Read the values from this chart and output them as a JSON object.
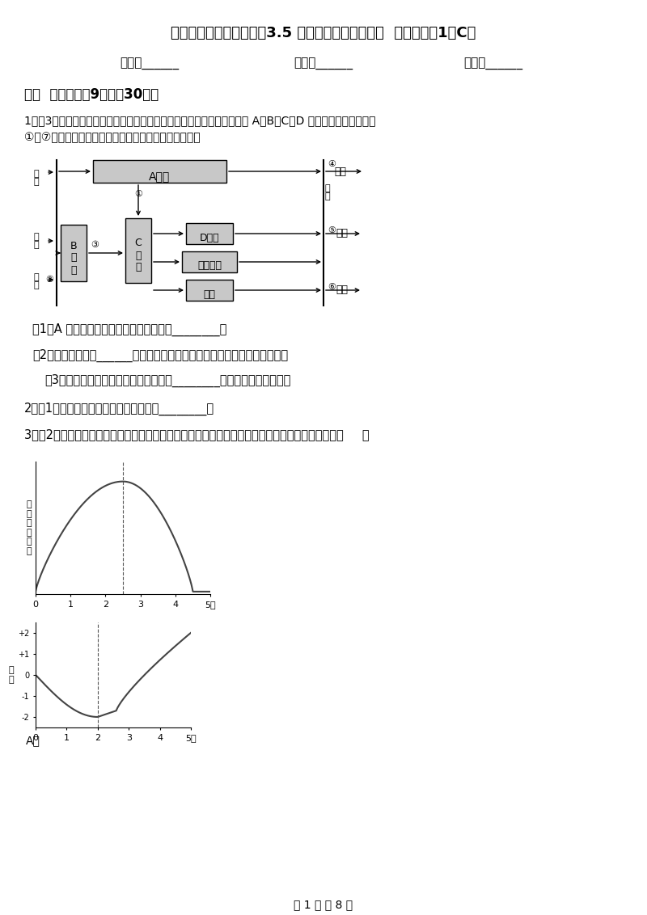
{
  "title": "浙教版科学八年级下学期3.5 生物的呼吸和呼吸作用  同步测试（1）C卷",
  "subtitle_name": "姓名：______",
  "subtitle_class": "班级：______",
  "subtitle_score": "成绩：______",
  "section1": "一、  填空题（共9题；共30分）",
  "q1_text": "1．（3分）如图是人体消化、呼吸、循环及排泄等生理活动示意图，其中 A、B、C、D 表示人体的几大系统。",
  "q1_text2": "①～⑦表示人体的某些生理过程。请据图回答下列问题。",
  "q1_a": "（1）A 系统中吸收营养物质的主要场所是________。",
  "q1_b": "（2）经过生理过程______（填图中数字序号），血液由静脉血变成动脉血。",
  "q1_c": "（3）图示中属于排泄途径的是哪几条？________。（填图中数字序号）",
  "q2_text": "2．（1分）支气管最细的分支末端形成了________。",
  "q3_text": "3．（2分）如图所示表示每次呼吸肺内气量的变化曲线。与此相适应，符合肺内气压变化的曲线是（     ）",
  "footer": "第 1 页 共 8 页",
  "bg_color": "#ffffff",
  "text_color": "#000000",
  "gray": "#c8c8c8"
}
